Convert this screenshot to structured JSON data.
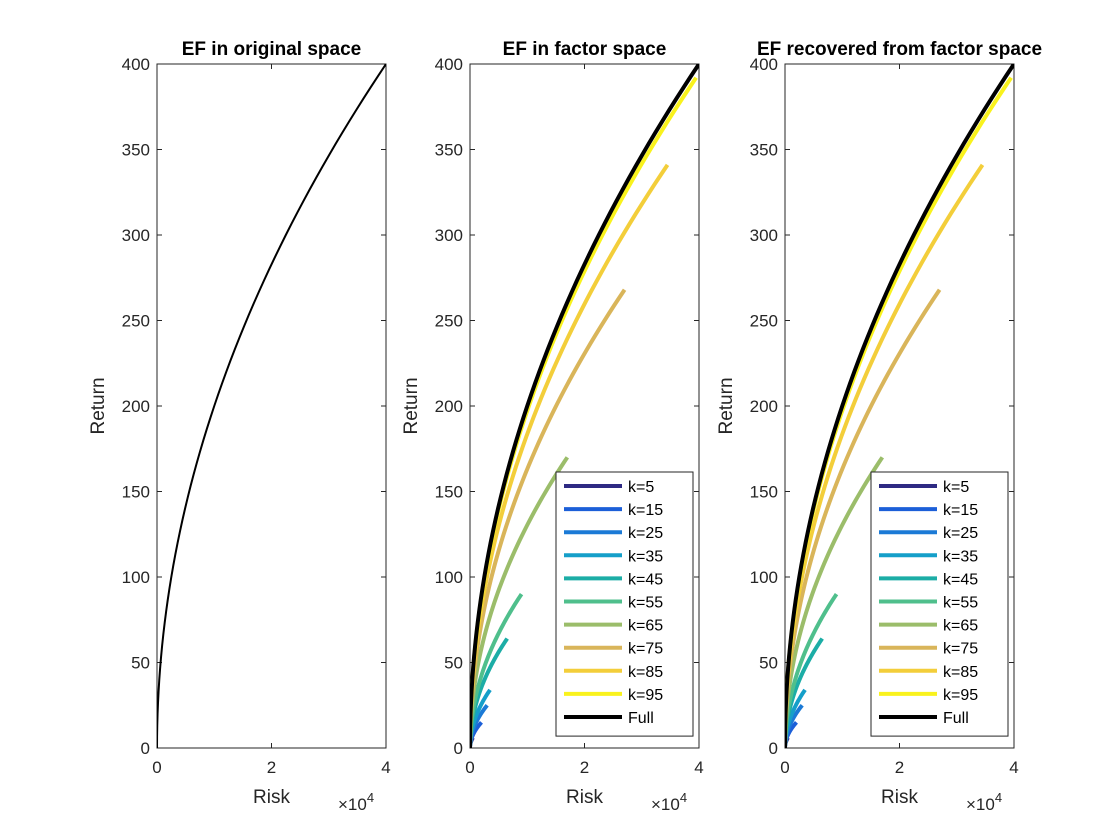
{
  "chart_data": [
    {
      "type": "line",
      "title": "EF in original space",
      "xlabel": "Risk",
      "ylabel": "Return",
      "x_exponent_label": "×10",
      "x_exponent_power": "4",
      "xlim": [
        0,
        4
      ],
      "ylim": [
        0,
        400
      ],
      "xticks": [
        "0",
        "2",
        "4"
      ],
      "yticks": [
        "0",
        "50",
        "100",
        "150",
        "200",
        "250",
        "300",
        "350",
        "400"
      ],
      "legend": null,
      "series": [
        {
          "color": "#000000",
          "x_end": 4.0,
          "y_end": 400,
          "width": 2
        }
      ]
    },
    {
      "type": "line",
      "title": "EF in factor space",
      "xlabel": "Risk",
      "ylabel": "Return",
      "x_exponent_label": "×10",
      "x_exponent_power": "4",
      "xlim": [
        0,
        4
      ],
      "ylim": [
        0,
        400
      ],
      "xticks": [
        "0",
        "2",
        "4"
      ],
      "yticks": [
        "0",
        "50",
        "100",
        "150",
        "200",
        "250",
        "300",
        "350",
        "400"
      ],
      "legend": "bottom-right",
      "series": [
        {
          "name": "k=5",
          "color": "#2e2a83",
          "x_end": 0.05,
          "y_end": 6
        },
        {
          "name": "k=15",
          "color": "#1c5fd8",
          "x_end": 0.2,
          "y_end": 15
        },
        {
          "name": "k=25",
          "color": "#1b7ad6",
          "x_end": 0.3,
          "y_end": 25
        },
        {
          "name": "k=35",
          "color": "#159fc9",
          "x_end": 0.35,
          "y_end": 34
        },
        {
          "name": "k=45",
          "color": "#1cada6",
          "x_end": 0.65,
          "y_end": 64
        },
        {
          "name": "k=55",
          "color": "#4fbf8c",
          "x_end": 0.9,
          "y_end": 90
        },
        {
          "name": "k=65",
          "color": "#9bbd6a",
          "x_end": 1.7,
          "y_end": 170
        },
        {
          "name": "k=75",
          "color": "#d9b55a",
          "x_end": 2.7,
          "y_end": 268
        },
        {
          "name": "k=85",
          "color": "#f3ce3a",
          "x_end": 3.45,
          "y_end": 341
        },
        {
          "name": "k=95",
          "color": "#f9f21d",
          "x_end": 3.95,
          "y_end": 392
        },
        {
          "name": "Full",
          "color": "#000000",
          "x_end": 4.0,
          "y_end": 400
        }
      ]
    },
    {
      "type": "line",
      "title": "EF recovered from factor space",
      "xlabel": "Risk",
      "ylabel": "Return",
      "x_exponent_label": "×10",
      "x_exponent_power": "4",
      "xlim": [
        0,
        4
      ],
      "ylim": [
        0,
        400
      ],
      "xticks": [
        "0",
        "2",
        "4"
      ],
      "yticks": [
        "0",
        "50",
        "100",
        "150",
        "200",
        "250",
        "300",
        "350",
        "400"
      ],
      "legend": "bottom-right",
      "series": [
        {
          "name": "k=5",
          "color": "#2e2a83",
          "x_end": 0.05,
          "y_end": 6
        },
        {
          "name": "k=15",
          "color": "#1c5fd8",
          "x_end": 0.2,
          "y_end": 15
        },
        {
          "name": "k=25",
          "color": "#1b7ad6",
          "x_end": 0.3,
          "y_end": 25
        },
        {
          "name": "k=35",
          "color": "#159fc9",
          "x_end": 0.35,
          "y_end": 34
        },
        {
          "name": "k=45",
          "color": "#1cada6",
          "x_end": 0.65,
          "y_end": 64
        },
        {
          "name": "k=55",
          "color": "#4fbf8c",
          "x_end": 0.9,
          "y_end": 90
        },
        {
          "name": "k=65",
          "color": "#9bbd6a",
          "x_end": 1.7,
          "y_end": 170
        },
        {
          "name": "k=75",
          "color": "#d9b55a",
          "x_end": 2.7,
          "y_end": 268
        },
        {
          "name": "k=85",
          "color": "#f3ce3a",
          "x_end": 3.45,
          "y_end": 341
        },
        {
          "name": "k=95",
          "color": "#f9f21d",
          "x_end": 3.95,
          "y_end": 392
        },
        {
          "name": "Full",
          "color": "#000000",
          "x_end": 4.0,
          "y_end": 400
        }
      ]
    }
  ]
}
